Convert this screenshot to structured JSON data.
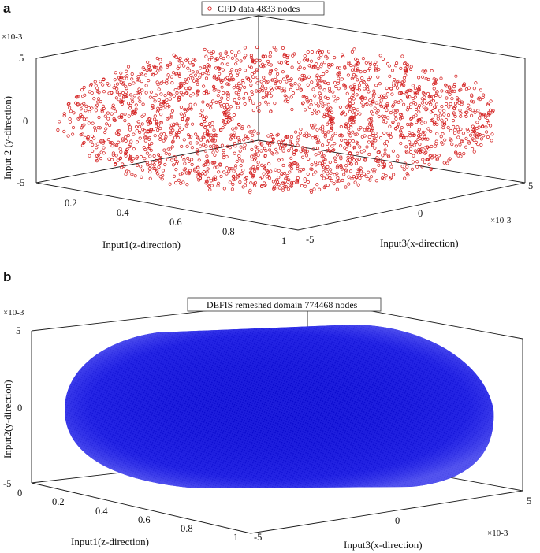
{
  "figure": {
    "panels": [
      "a",
      "b"
    ]
  },
  "chart_data": [
    {
      "type": "scatter",
      "panel": "a",
      "legend": "CFD data 4833 nodes",
      "marker": "open-circle",
      "color": "#d42020",
      "node_count": 4833,
      "xlabel": "Input1(z-direction)",
      "ylabel": "Input3(x-direction)",
      "zlabel": "Input 2 (y-direction)",
      "x_ticks": [
        "0.2",
        "0.4",
        "0.6",
        "0.8",
        "1"
      ],
      "y_ticks": [
        "-5",
        "0",
        "5"
      ],
      "z_ticks": [
        "-5",
        "0",
        "5"
      ],
      "y_multiplier": "×10-3",
      "z_multiplier": "×10-3",
      "xlim": [
        0.05,
        1.0
      ],
      "ylim": [
        -0.005,
        0.005
      ],
      "zlim": [
        -0.005,
        0.005
      ]
    },
    {
      "type": "scatter",
      "panel": "b",
      "legend": "DEFIS remeshed domain 774468 nodes",
      "marker": "dot",
      "color": "#1010d0",
      "node_count": 774468,
      "xlabel": "Input1(z-direction)",
      "ylabel": "Input3(x-direction)",
      "zlabel": "Input2(y-direction)",
      "x_ticks": [
        "0",
        "0.2",
        "0.4",
        "0.6",
        "0.8",
        "1"
      ],
      "y_ticks": [
        "-5",
        "0",
        "5"
      ],
      "z_ticks": [
        "-5",
        "0",
        "5"
      ],
      "y_multiplier": "×10-3",
      "z_multiplier": "×10-3",
      "xlim": [
        0.0,
        1.0
      ],
      "ylim": [
        -0.005,
        0.005
      ],
      "zlim": [
        -0.005,
        0.005
      ]
    }
  ]
}
